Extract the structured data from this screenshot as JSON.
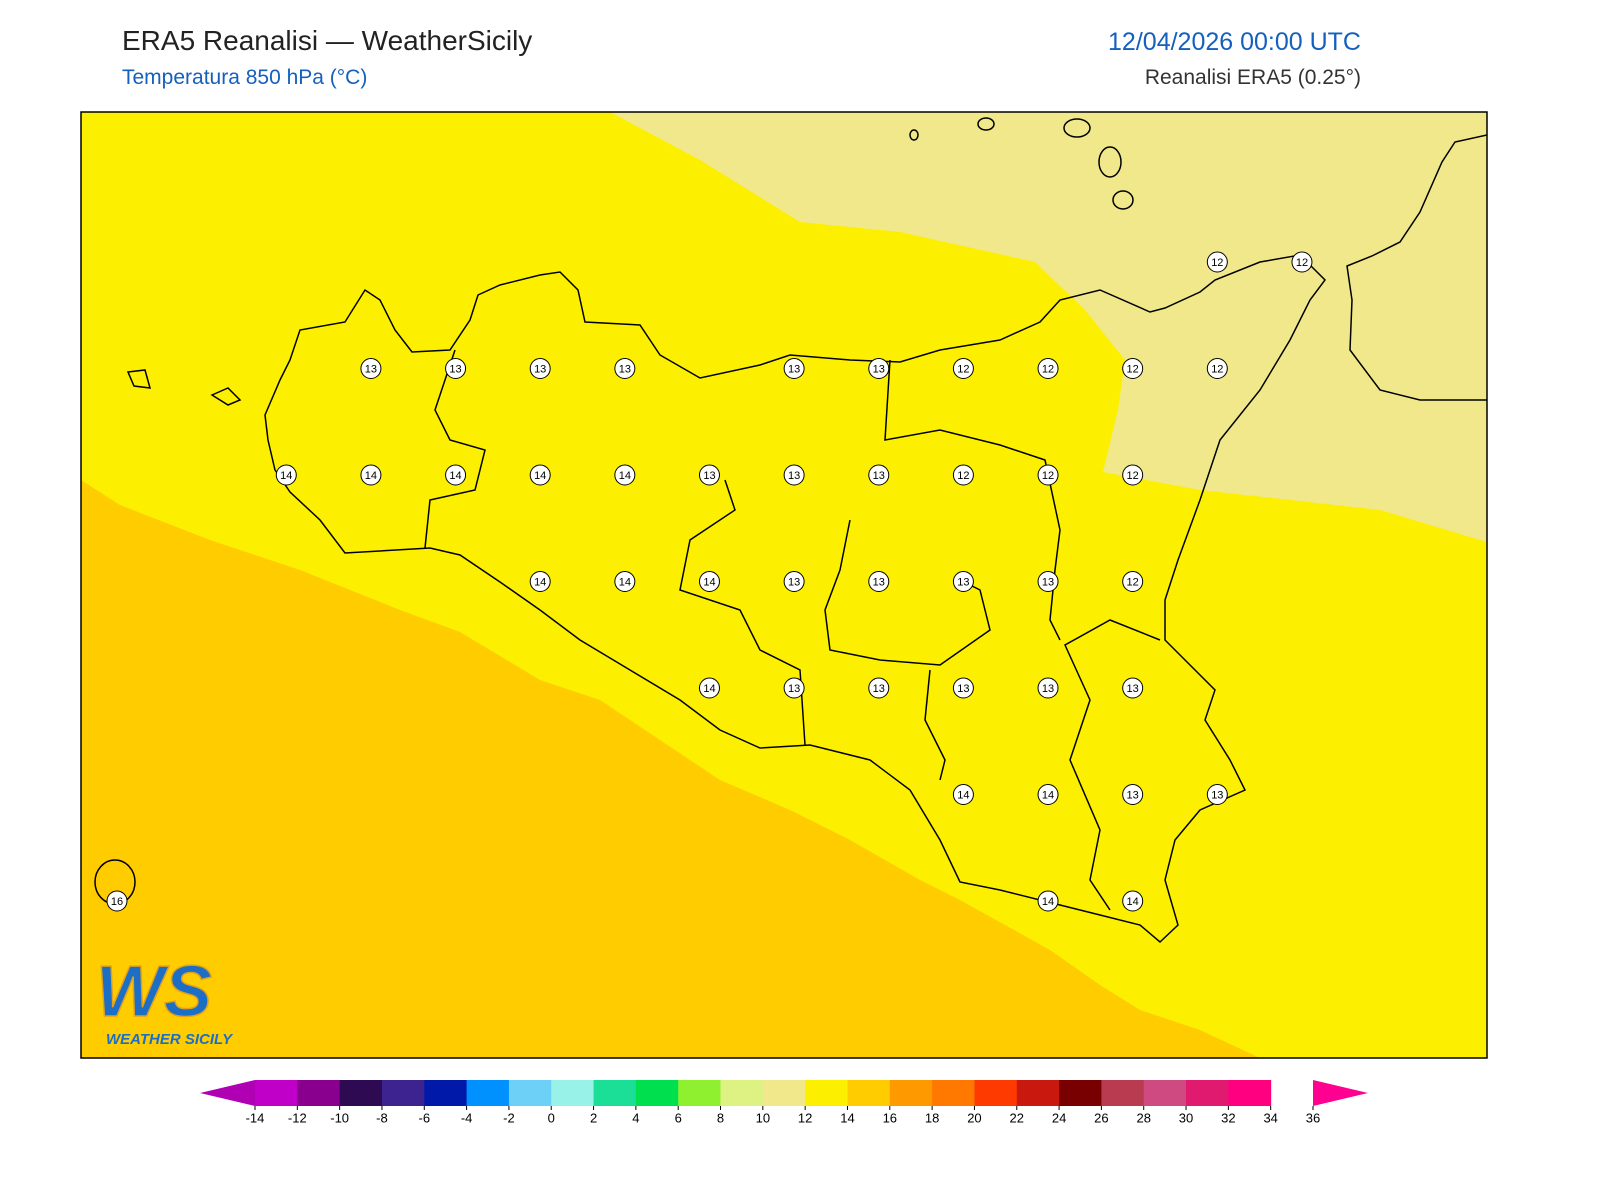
{
  "header": {
    "title": "ERA5 Reanalisi — WeatherSicily",
    "subtitle": "Temperatura 850 hPa (°C)",
    "datetime": "12/04/2026 00:00 UTC",
    "source": "Reanalisi ERA5 (0.25°)"
  },
  "map": {
    "grid_labels": [
      [
        null,
        null,
        null,
        null,
        null,
        null,
        null,
        null,
        null,
        null,
        null,
        null,
        null,
        12,
        12
      ],
      [
        null,
        null,
        null,
        13,
        13,
        13,
        13,
        null,
        13,
        13,
        12,
        12,
        12,
        12,
        null
      ],
      [
        null,
        null,
        14,
        14,
        14,
        14,
        14,
        13,
        13,
        13,
        12,
        12,
        12,
        null,
        null
      ],
      [
        null,
        null,
        null,
        null,
        null,
        14,
        14,
        14,
        13,
        13,
        13,
        13,
        12,
        null,
        null
      ],
      [
        null,
        null,
        null,
        null,
        null,
        null,
        null,
        14,
        13,
        13,
        13,
        13,
        13,
        null,
        null
      ],
      [
        null,
        null,
        null,
        null,
        null,
        null,
        null,
        null,
        null,
        null,
        14,
        14,
        13,
        13,
        null
      ],
      [
        16,
        null,
        null,
        null,
        null,
        null,
        null,
        null,
        null,
        null,
        null,
        14,
        14,
        null,
        null
      ]
    ]
  },
  "logo": {
    "mark": "WS",
    "text": "WEATHER SICILY"
  },
  "colorbar": {
    "ticks": [
      -14,
      -12,
      -10,
      -8,
      -6,
      -4,
      -2,
      0,
      2,
      4,
      6,
      8,
      10,
      12,
      14,
      16,
      18,
      20,
      22,
      24,
      26,
      28,
      30,
      32,
      34,
      36
    ],
    "colors": [
      "#c000c8",
      "#8a008e",
      "#2e0a52",
      "#3c2390",
      "#0019a8",
      "#0091ff",
      "#6dd0f7",
      "#98f2e8",
      "#1bdf97",
      "#00e04f",
      "#8ff02f",
      "#def283",
      "#f0e88a",
      "#fcf000",
      "#ffcc00",
      "#ff9900",
      "#ff7800",
      "#ff3a00",
      "#c9190f",
      "#780000",
      "#b83b50",
      "#d04a82",
      "#e01a6e",
      "#ff0080"
    ],
    "under_color": "#b000b4",
    "over_color": "#ff0090"
  }
}
